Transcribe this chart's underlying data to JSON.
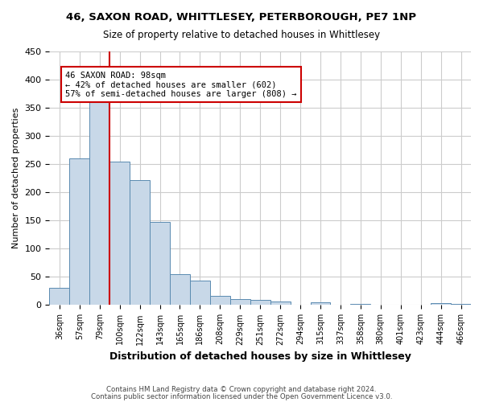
{
  "title_line1": "46, SAXON ROAD, WHITTLESEY, PETERBOROUGH, PE7 1NP",
  "title_line2": "Size of property relative to detached houses in Whittlesey",
  "xlabel": "Distribution of detached houses by size in Whittlesey",
  "ylabel": "Number of detached properties",
  "footer_line1": "Contains HM Land Registry data © Crown copyright and database right 2024.",
  "footer_line2": "Contains public sector information licensed under the Open Government Licence v3.0.",
  "bin_labels": [
    "36sqm",
    "57sqm",
    "79sqm",
    "100sqm",
    "122sqm",
    "143sqm",
    "165sqm",
    "186sqm",
    "208sqm",
    "229sqm",
    "251sqm",
    "272sqm",
    "294sqm",
    "315sqm",
    "337sqm",
    "358sqm",
    "380sqm",
    "401sqm",
    "423sqm",
    "444sqm",
    "466sqm"
  ],
  "bar_values": [
    30,
    260,
    363,
    255,
    222,
    147,
    55,
    44,
    16,
    10,
    9,
    7,
    0,
    5,
    0,
    2,
    0,
    0,
    0,
    3,
    2
  ],
  "bar_color": "#c8d8e8",
  "bar_edge_color": "#5a8ab0",
  "annotation_text": "46 SAXON ROAD: 98sqm\n← 42% of detached houses are smaller (602)\n57% of semi-detached houses are larger (808) →",
  "annotation_box_color": "#ffffff",
  "annotation_box_edge_color": "#cc0000",
  "vline_color": "#cc0000",
  "background_color": "#ffffff",
  "grid_color": "#cccccc",
  "ylim": [
    0,
    450
  ],
  "yticks": [
    0,
    50,
    100,
    150,
    200,
    250,
    300,
    350,
    400,
    450
  ],
  "vline_x": 2.5
}
